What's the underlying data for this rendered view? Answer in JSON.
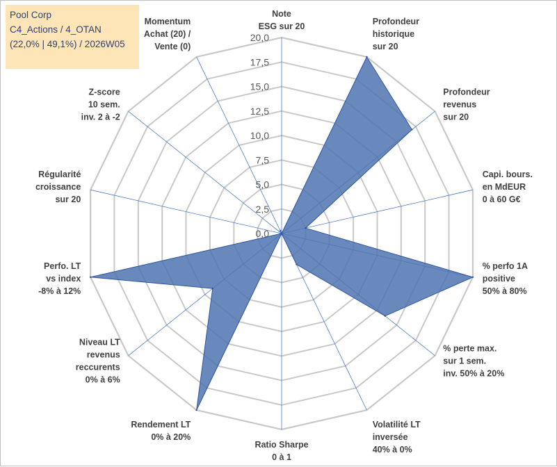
{
  "title_box": {
    "line1": "Pool Corp",
    "line2": "C4_Actions / 4_OTAN",
    "line3": "(22,0% | 49,1%) / 2026W05"
  },
  "colors": {
    "fill": "#4f74b0",
    "outline": "#2f56a0",
    "grid": "#c8c8c8",
    "spoke": "#4a7bc8",
    "title_bg": "#fde5b8"
  },
  "chart_data": {
    "type": "radar",
    "rmax": 20,
    "tick_step": 2.5,
    "tick_labels": [
      "0,0",
      "2,5",
      "5,0",
      "7,5",
      "10,0",
      "12,5",
      "15,0",
      "17,5",
      "20,0"
    ],
    "axes": [
      {
        "label": [
          "Note",
          "ESG sur 20"
        ],
        "value": 0
      },
      {
        "label": [
          "Profondeur",
          "historique",
          "sur 20"
        ],
        "value": 20
      },
      {
        "label": [
          "Profondeur",
          "revenus",
          "sur 20"
        ],
        "value": 17
      },
      {
        "label": [
          "Capi. bours.",
          "en MdEUR",
          "0 à 60 G€"
        ],
        "value": 2.5
      },
      {
        "label": [
          "% perfo 1A",
          "positive",
          "50% à 80%"
        ],
        "value": 20
      },
      {
        "label": [
          "% perte max.",
          "sur 1 sem.",
          "inv. 50% à 20%"
        ],
        "value": 13.5
      },
      {
        "label": [
          "Volatilité LT",
          "inversée",
          "40% à 0%"
        ],
        "value": 3.5
      },
      {
        "label": [
          "Ratio Sharpe",
          "0 à 1"
        ],
        "value": 0
      },
      {
        "label": [
          "Rendement LT",
          "0% à 20%"
        ],
        "value": 20
      },
      {
        "label": [
          "Niveau LT",
          "revenus",
          "reccurents",
          "0% à 6%"
        ],
        "value": 9
      },
      {
        "label": [
          "Perfo. LT",
          "vs index",
          "-8% à 12%"
        ],
        "value": 20
      },
      {
        "label": [
          "Régularité",
          "croissance",
          "sur 20"
        ],
        "value": 0
      },
      {
        "label": [
          "Z-score",
          "10 sem.",
          "inv. 2 à -2"
        ],
        "value": 0
      },
      {
        "label": [
          "Momentum",
          "Achat (20) /",
          "Vente (0)"
        ],
        "value": 0.3
      }
    ]
  }
}
